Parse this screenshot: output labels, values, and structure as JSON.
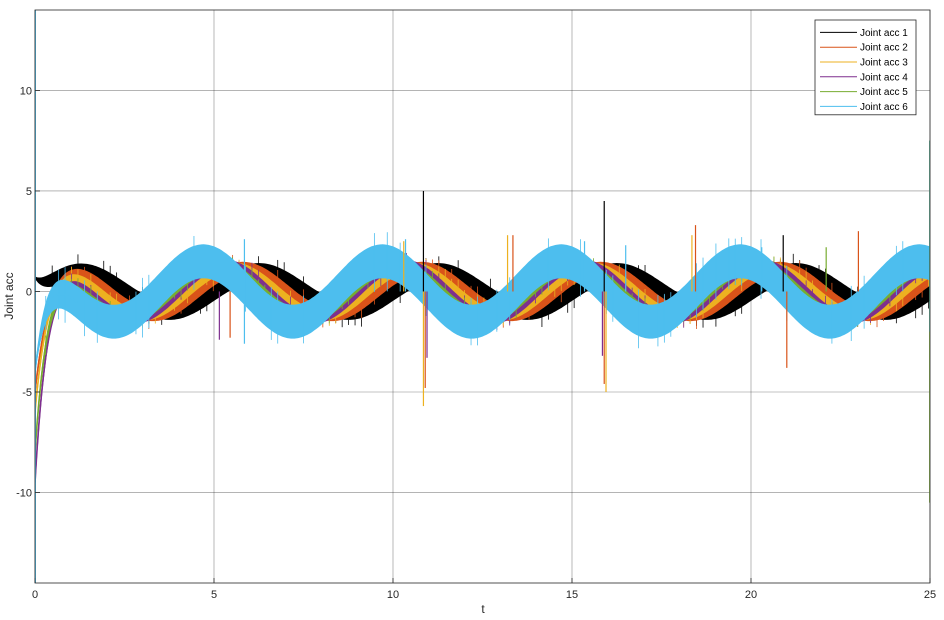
{
  "chart_data": {
    "type": "line",
    "title": "",
    "xlabel": "t",
    "ylabel": "Joint acc",
    "xlim": [
      0,
      25
    ],
    "ylim": [
      -14.5,
      14
    ],
    "x_ticks": [
      0,
      5,
      10,
      15,
      20,
      25
    ],
    "x_tick_labels": [
      "0",
      "5",
      "10",
      "15",
      "20",
      "25"
    ],
    "y_ticks": [
      10,
      5,
      0,
      -5,
      -10
    ],
    "y_tick_labels": [
      "10",
      "5",
      "0",
      "-5",
      "-10"
    ],
    "grid": true,
    "legend_position": "top-right",
    "sample_step": 0.05,
    "series": [
      {
        "name": "Joint acc 1",
        "color": "#000000",
        "initial": 0.7,
        "amplitude": 0.95,
        "band": 0.42,
        "period": 5.0,
        "phase_shift": 0.0,
        "noise_band": 0.35
      },
      {
        "name": "Joint acc 2",
        "color": "#D95319",
        "initial": -5.0,
        "amplitude": 1.15,
        "band": 0.28,
        "period": 5.0,
        "phase_shift": -0.45,
        "noise_band": 0.3
      },
      {
        "name": "Joint acc 3",
        "color": "#EDB120",
        "initial": -6.0,
        "amplitude": 1.2,
        "band": 0.2,
        "period": 5.0,
        "phase_shift": -0.7,
        "noise_band": 0.3
      },
      {
        "name": "Joint acc 4",
        "color": "#7E2F8E",
        "initial": -9.5,
        "amplitude": 1.35,
        "band": 0.2,
        "period": 5.0,
        "phase_shift": -0.95,
        "noise_band": 0.3
      },
      {
        "name": "Joint acc 5",
        "color": "#77AC30",
        "initial": -8.0,
        "amplitude": 1.3,
        "band": 0.25,
        "period": 5.0,
        "phase_shift": -1.15,
        "noise_band": 0.3
      },
      {
        "name": "Joint acc 6",
        "color": "#4DBEEE",
        "initial": -4.0,
        "amplitude": 1.5,
        "band": 0.8,
        "period": 5.0,
        "phase_shift": -1.55,
        "noise_band": 0.45
      }
    ],
    "spikes": [
      {
        "series": 0,
        "x": 10.85,
        "y": 5.0
      },
      {
        "series": 1,
        "x": 10.9,
        "y": -4.8
      },
      {
        "series": 2,
        "x": 10.85,
        "y": -5.7
      },
      {
        "series": 3,
        "x": 10.95,
        "y": -3.3
      },
      {
        "series": 0,
        "x": 15.9,
        "y": 4.5
      },
      {
        "series": 2,
        "x": 15.95,
        "y": -5.0
      },
      {
        "series": 1,
        "x": 15.9,
        "y": -4.6
      },
      {
        "series": 3,
        "x": 15.85,
        "y": -3.2
      },
      {
        "series": 0,
        "x": 20.9,
        "y": 2.8
      },
      {
        "series": 1,
        "x": 21.0,
        "y": -3.8
      },
      {
        "series": 2,
        "x": 18.35,
        "y": 2.8
      },
      {
        "series": 1,
        "x": 18.45,
        "y": 3.3
      },
      {
        "series": 1,
        "x": 23.0,
        "y": 3.0
      },
      {
        "series": 5,
        "x": 5.85,
        "y": 2.6
      },
      {
        "series": 5,
        "x": 5.85,
        "y": -2.6
      },
      {
        "series": 5,
        "x": 10.35,
        "y": 2.6
      },
      {
        "series": 2,
        "x": 10.3,
        "y": 2.5
      },
      {
        "series": 5,
        "x": 15.35,
        "y": 2.5
      },
      {
        "series": 2,
        "x": 13.2,
        "y": 2.8
      },
      {
        "series": 1,
        "x": 13.35,
        "y": 2.8
      },
      {
        "series": 3,
        "x": 5.15,
        "y": -2.4
      },
      {
        "series": 1,
        "x": 5.45,
        "y": -2.3
      },
      {
        "series": 5,
        "x": 16.5,
        "y": 2.3
      },
      {
        "series": 5,
        "x": 20.3,
        "y": 2.2
      },
      {
        "series": 4,
        "x": 22.1,
        "y": 2.2
      }
    ]
  }
}
